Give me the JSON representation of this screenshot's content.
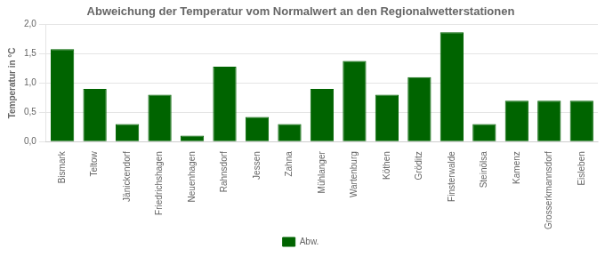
{
  "chart_data": {
    "type": "bar",
    "title": "Abweichung der Temperatur vom Normalwert an den Regionalwetterstationen",
    "ylabel": "Temperatur in °C",
    "categories": [
      "Bismark",
      "Teltow",
      "Jänickendorf",
      "Friedrichshagen",
      "Neuenhagen",
      "Rahnsdorf",
      "Jessen",
      "Zahna",
      "Mühlanger",
      "Wartenburg",
      "Köthen",
      "Gröditz",
      "Finsterwalde",
      "Steinölsa",
      "Kamenz",
      "Grosserkmannsdorf",
      "Eisleben"
    ],
    "series": [
      {
        "name": "Abw.",
        "color": "#006400",
        "values": [
          1.58,
          0.9,
          0.3,
          0.8,
          0.1,
          1.28,
          0.42,
          0.3,
          0.9,
          1.38,
          0.8,
          1.1,
          1.87,
          0.3,
          0.7,
          0.7,
          0.7
        ]
      }
    ],
    "ylim": [
      0.0,
      2.0
    ],
    "yticks": [
      {
        "value": 0.0,
        "label": "0,0"
      },
      {
        "value": 0.5,
        "label": "0,5"
      },
      {
        "value": 1.0,
        "label": "1,0"
      },
      {
        "value": 1.5,
        "label": "1,5"
      },
      {
        "value": 2.0,
        "label": "2,0"
      }
    ],
    "grid": true,
    "legend": "bottom"
  }
}
